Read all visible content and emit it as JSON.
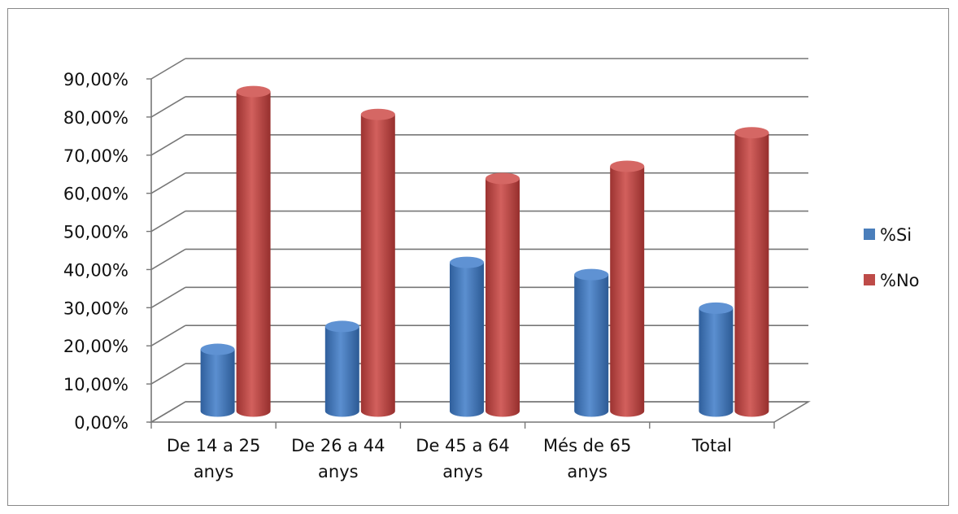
{
  "chart_data": {
    "type": "bar",
    "categories": [
      [
        "De 14 a 25",
        "anys"
      ],
      [
        "De 26 a 44",
        "anys"
      ],
      [
        "De 45 a 64",
        "anys"
      ],
      [
        "Més de 65",
        "anys"
      ],
      [
        "Total"
      ]
    ],
    "series": [
      {
        "name": "%Si",
        "color": "#4a7ebb",
        "values": [
          16.2,
          22.2,
          39.0,
          35.8,
          27.0
        ]
      },
      {
        "name": "%No",
        "color": "#be4b48",
        "values": [
          83.8,
          77.8,
          61.0,
          64.2,
          73.0
        ]
      }
    ],
    "yticks": [
      "0,00%",
      "10,00%",
      "20,00%",
      "30,00%",
      "40,00%",
      "50,00%",
      "60,00%",
      "70,00%",
      "80,00%",
      "90,00%"
    ],
    "ylim": [
      0,
      90
    ],
    "grid": true,
    "legend_position": "right",
    "title": "",
    "xlabel": "",
    "ylabel": ""
  }
}
